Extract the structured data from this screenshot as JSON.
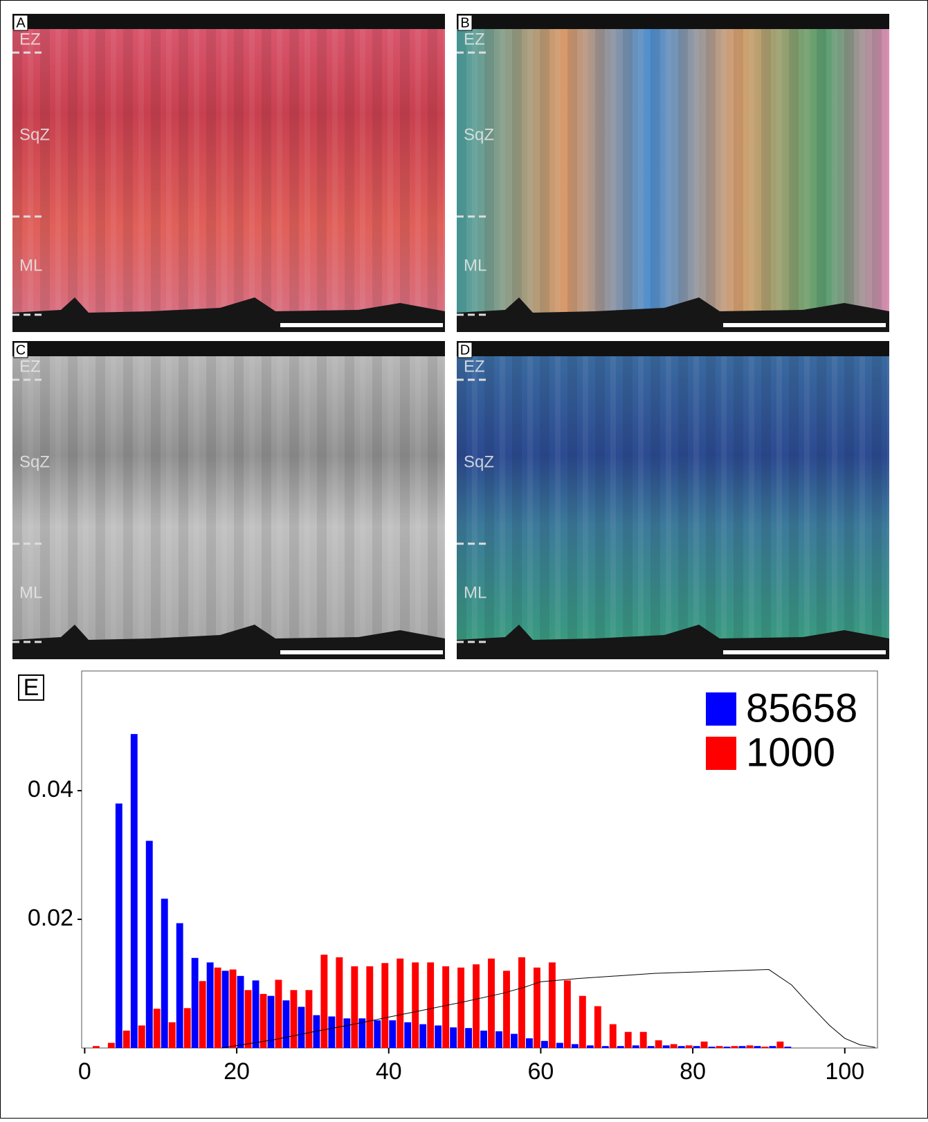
{
  "panels": [
    {
      "label": "A",
      "zones": [
        "EZ",
        "SqZ",
        "ML"
      ]
    },
    {
      "label": "B",
      "zones": [
        "EZ",
        "SqZ",
        "ML"
      ]
    },
    {
      "label": "C",
      "zones": [
        "EZ",
        "SqZ",
        "ML"
      ]
    },
    {
      "label": "D",
      "zones": [
        "EZ",
        "SqZ",
        "ML"
      ]
    }
  ],
  "chart_data": {
    "type": "histogram",
    "label": "E",
    "bins": [
      0,
      2,
      4,
      6,
      8,
      10,
      12,
      14,
      16,
      18,
      20,
      22,
      24,
      26,
      28,
      30,
      32,
      34,
      36,
      38,
      40,
      42,
      44,
      46,
      48,
      50,
      52,
      54,
      56,
      58,
      60,
      62,
      64,
      66,
      68,
      70,
      72,
      74,
      76,
      78,
      80,
      82,
      84,
      86,
      88,
      90,
      92,
      94
    ],
    "series": [
      {
        "name": "85658",
        "color": "#0000ff",
        "values": [
          0,
          0,
          0.038,
          0.0488,
          0.0322,
          0.0232,
          0.0194,
          0.014,
          0.0133,
          0.012,
          0.0112,
          0.0105,
          0.0081,
          0.0074,
          0.0064,
          0.0051,
          0.0049,
          0.0046,
          0.0046,
          0.0043,
          0.0043,
          0.004,
          0.0037,
          0.0035,
          0.0032,
          0.0031,
          0.0027,
          0.0026,
          0.0022,
          0.0015,
          0.0011,
          0.0008,
          0.0006,
          0.0004,
          0.0003,
          0.0003,
          0.0004,
          0.0003,
          0.0004,
          0.0003,
          0.0003,
          0.0002,
          0.0002,
          0.0003,
          0.0003,
          0.0003,
          0.0002
        ]
      },
      {
        "name": "1000",
        "color": "#ff0000",
        "values": [
          0.0003,
          0.0008,
          0.0027,
          0.0035,
          0.0061,
          0.004,
          0.0062,
          0.0104,
          0.0125,
          0.0122,
          0.009,
          0.0084,
          0.0106,
          0.009,
          0.009,
          0.0145,
          0.0141,
          0.0127,
          0.0127,
          0.0132,
          0.0139,
          0.0133,
          0.0133,
          0.0127,
          0.0125,
          0.013,
          0.0139,
          0.012,
          0.0141,
          0.0125,
          0.0133,
          0.0105,
          0.0081,
          0.0065,
          0.0037,
          0.0025,
          0.0025,
          0.0012,
          0.0006,
          0.0004,
          0.001,
          0.0003,
          0.0003,
          0.0004,
          0.0002,
          0.001,
          0
        ]
      }
    ],
    "curve": {
      "color": "#000000",
      "x": [
        18,
        25,
        30,
        35,
        40,
        45,
        50,
        55,
        58,
        60,
        65,
        70,
        75,
        80,
        85,
        90,
        93,
        95,
        98,
        100,
        102,
        104
      ],
      "values": [
        0,
        0.0013,
        0.0025,
        0.0036,
        0.0048,
        0.006,
        0.0072,
        0.0085,
        0.0095,
        0.0103,
        0.0108,
        0.0112,
        0.0116,
        0.0118,
        0.012,
        0.0122,
        0.0098,
        0.0072,
        0.0035,
        0.0015,
        0.0005,
        0.0001
      ]
    },
    "xlim": [
      -0.4,
      104.3
    ],
    "ylim": [
      0,
      0.0586
    ],
    "xticks": [
      0,
      20,
      40,
      60,
      80,
      100
    ],
    "yticks": [
      0.02,
      0.04
    ],
    "legend": "upper right"
  }
}
